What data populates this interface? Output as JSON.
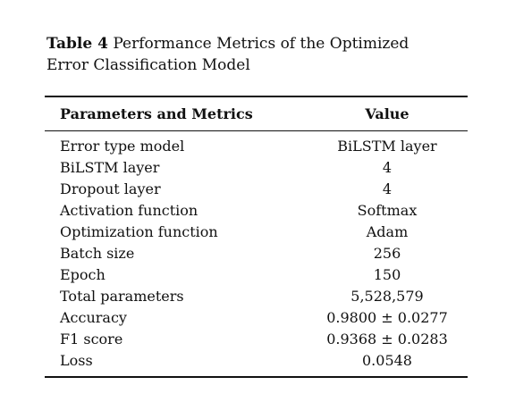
{
  "table": {
    "label": "Table 4",
    "caption_line1": "Performance Metrics of the Optimized",
    "caption_line2": "Error Classification Model",
    "headers": {
      "param": "Parameters and Metrics",
      "value": "Value"
    },
    "rows": [
      {
        "param": "Error type model",
        "value": "BiLSTM layer"
      },
      {
        "param": "BiLSTM layer",
        "value": "4"
      },
      {
        "param": "Dropout layer",
        "value": "4"
      },
      {
        "param": "Activation function",
        "value": "Softmax"
      },
      {
        "param": "Optimization function",
        "value": "Adam"
      },
      {
        "param": "Batch size",
        "value": "256"
      },
      {
        "param": "Epoch",
        "value": "150"
      },
      {
        "param": "Total parameters",
        "value": "5,528,579"
      },
      {
        "param": "Accuracy",
        "value": "0.9800 ± 0.0277"
      },
      {
        "param": "F1 score",
        "value": "0.9368 ± 0.0283"
      },
      {
        "param": "Loss",
        "value": "0.0548"
      }
    ]
  }
}
